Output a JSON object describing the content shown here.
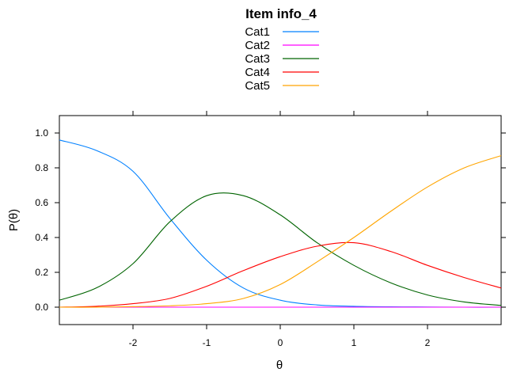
{
  "chart_data": {
    "type": "line",
    "title": "Item info_4",
    "xlabel": "θ",
    "ylabel": "P(θ)",
    "xlim": [
      -3,
      3
    ],
    "ylim": [
      -0.1,
      1.1
    ],
    "xticks": [
      -2,
      -1,
      0,
      1,
      2
    ],
    "yticks": [
      0.0,
      0.2,
      0.4,
      0.6,
      0.8,
      1.0
    ],
    "xtick_labels": [
      "-2",
      "-1",
      "0",
      "1",
      "2"
    ],
    "ytick_labels": [
      "0.0",
      "0.2",
      "0.4",
      "0.6",
      "0.8",
      "1.0"
    ],
    "grid": false,
    "legend_position": "top",
    "x": [
      -3.0,
      -2.5,
      -2.0,
      -1.5,
      -1.0,
      -0.5,
      0.0,
      0.5,
      1.0,
      1.5,
      2.0,
      2.5,
      3.0
    ],
    "series": [
      {
        "name": "Cat1",
        "color": "#0080ff",
        "values": [
          0.96,
          0.9,
          0.78,
          0.51,
          0.27,
          0.11,
          0.04,
          0.013,
          0.005,
          0.002,
          0.001,
          0.0,
          0.0
        ]
      },
      {
        "name": "Cat2",
        "color": "#ff00ff",
        "values": [
          0.0,
          0.0,
          0.0,
          0.0,
          0.0,
          0.0,
          0.0,
          0.0,
          0.0,
          0.0,
          0.0,
          0.0,
          0.0
        ]
      },
      {
        "name": "Cat3",
        "color": "#006400",
        "values": [
          0.04,
          0.11,
          0.25,
          0.49,
          0.64,
          0.64,
          0.53,
          0.37,
          0.24,
          0.14,
          0.07,
          0.03,
          0.01
        ]
      },
      {
        "name": "Cat4",
        "color": "#ff0000",
        "values": [
          0.0,
          0.005,
          0.02,
          0.05,
          0.12,
          0.21,
          0.29,
          0.35,
          0.37,
          0.32,
          0.24,
          0.17,
          0.11
        ]
      },
      {
        "name": "Cat5",
        "color": "#ffa500",
        "values": [
          0.0,
          0.0,
          0.003,
          0.008,
          0.02,
          0.05,
          0.13,
          0.26,
          0.4,
          0.55,
          0.69,
          0.8,
          0.87
        ]
      }
    ]
  }
}
